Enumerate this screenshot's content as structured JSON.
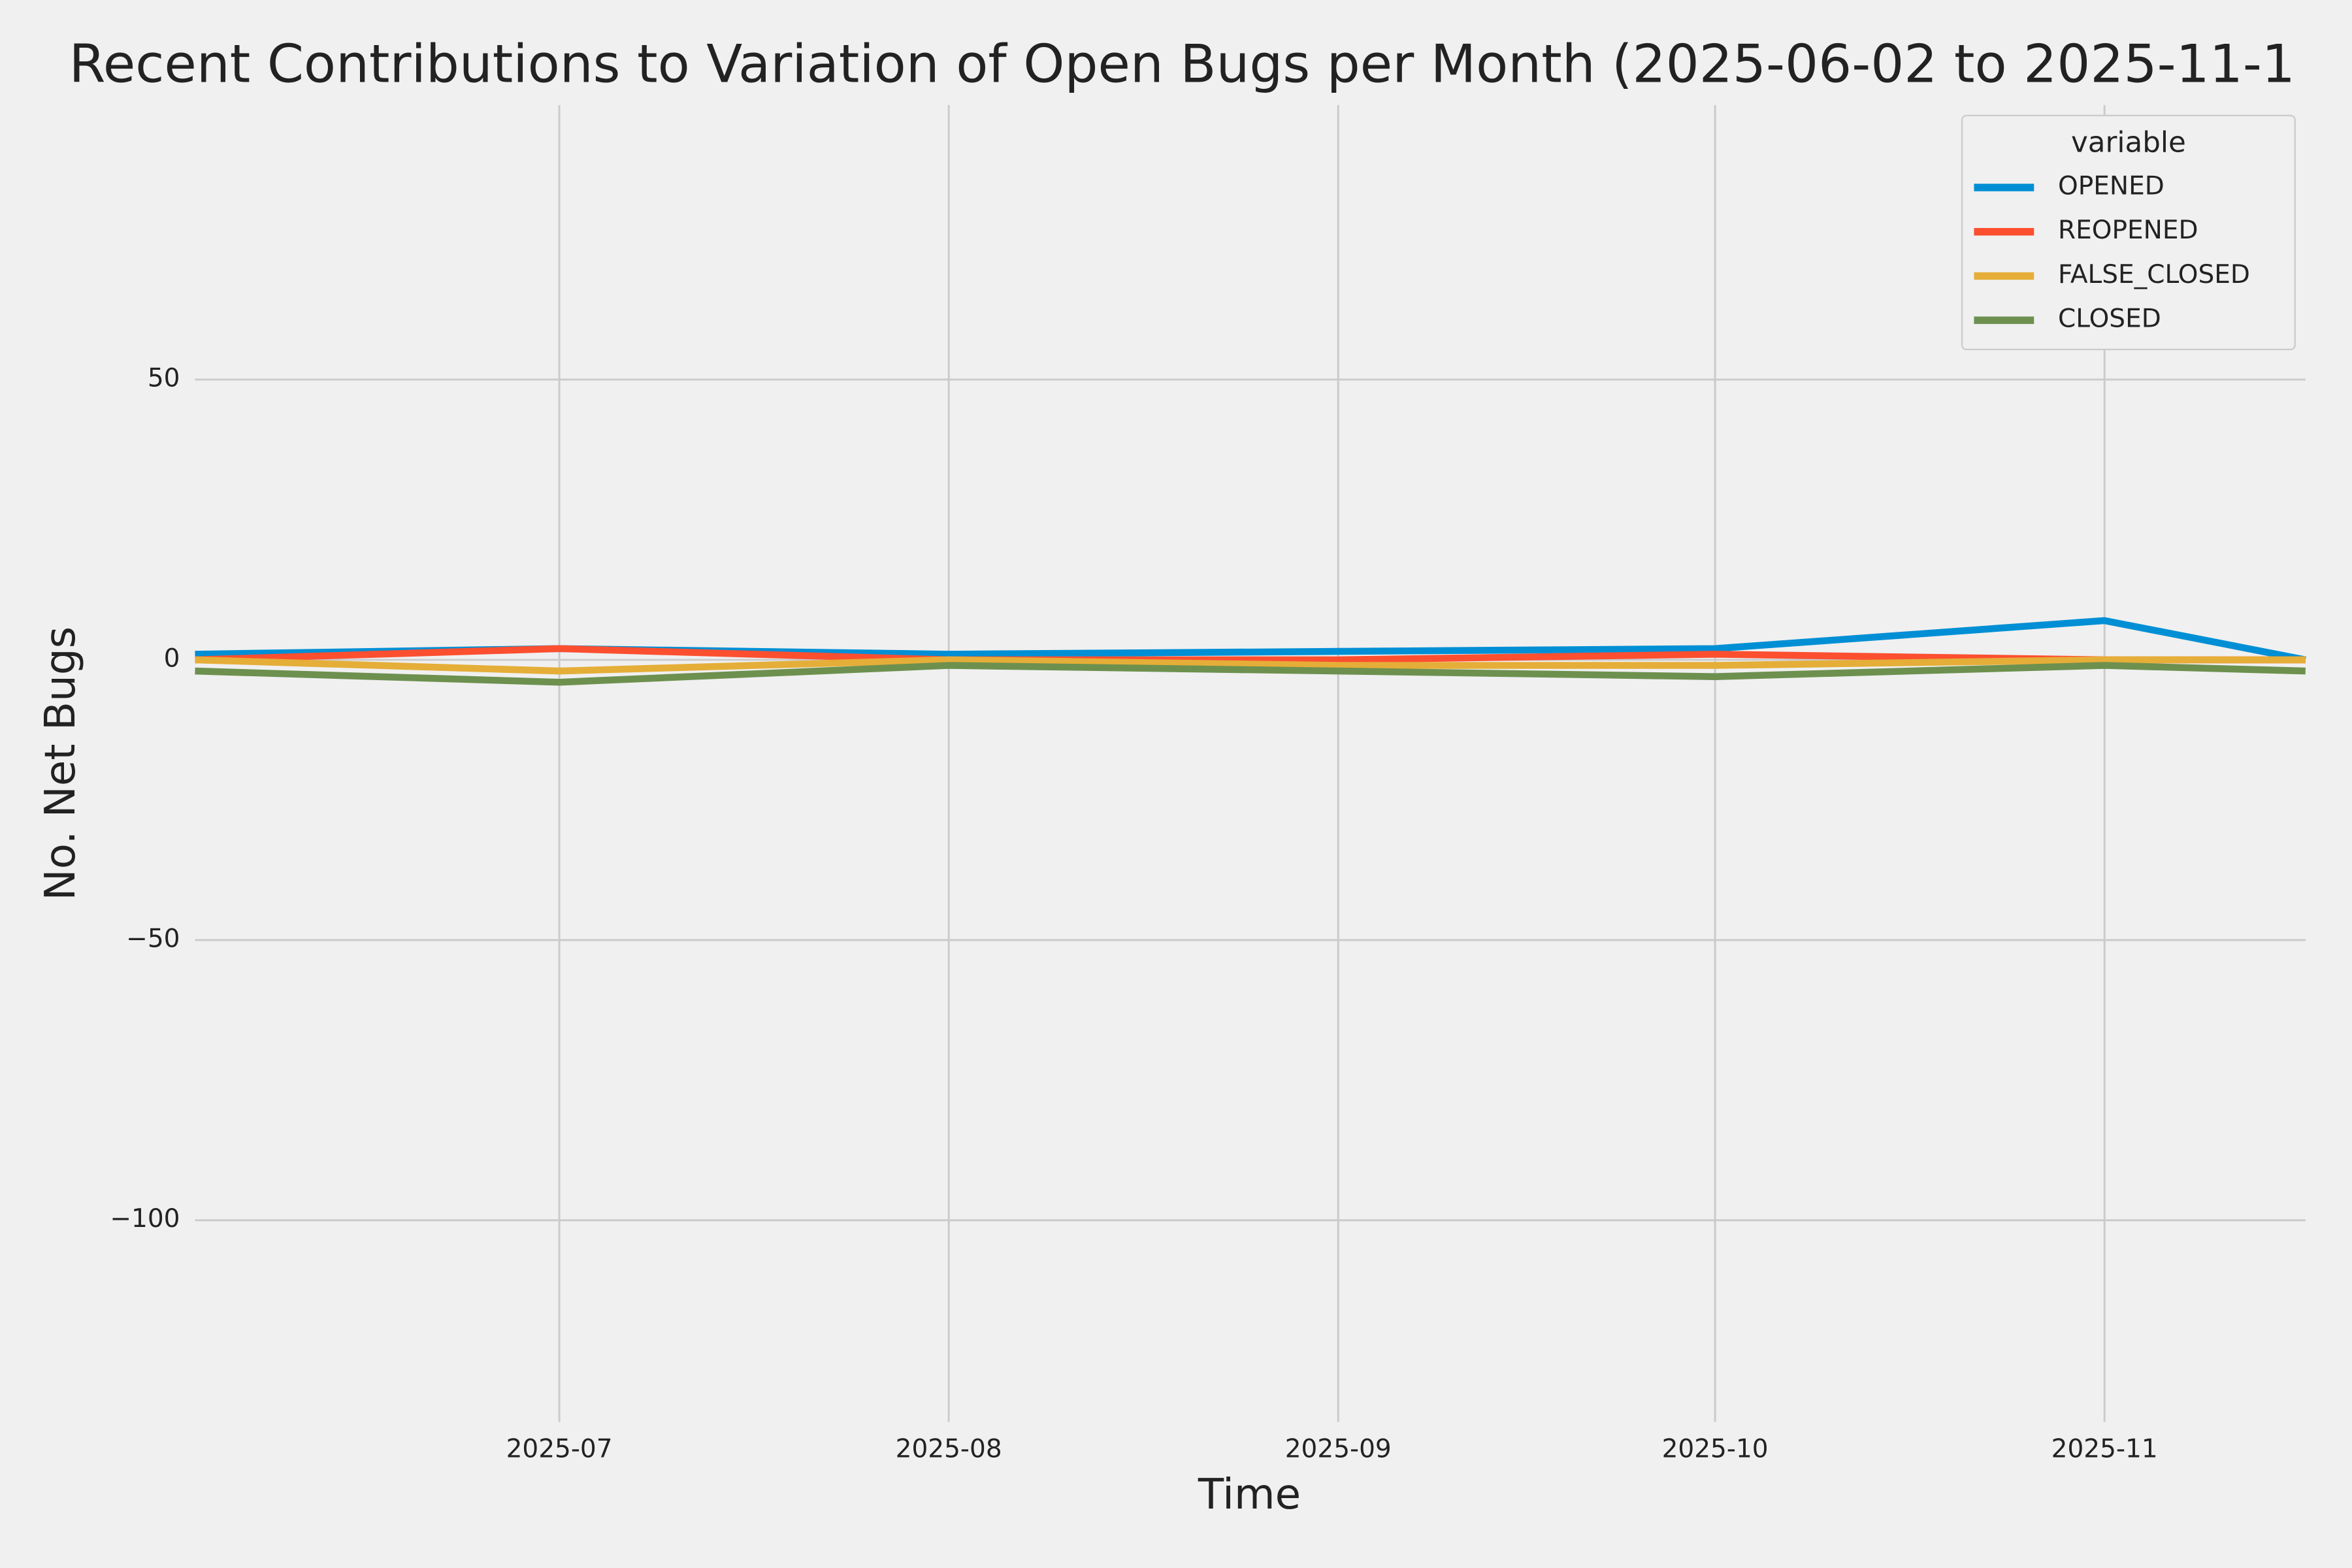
{
  "chart_data": {
    "type": "line",
    "title": "Recent Contributions to Variation of Open Bugs per Month (2025-06-02 to 2025-11-1",
    "xlabel": "Time",
    "ylabel": "No. Net Bugs",
    "x": [
      "2025-06-02",
      "2025-07",
      "2025-08",
      "2025-09",
      "2025-10",
      "2025-11",
      "2025-11-17"
    ],
    "xlim": [
      "2025-06-02",
      "2025-11-17"
    ],
    "xticks": [
      "2025-07",
      "2025-08",
      "2025-09",
      "2025-10",
      "2025-11"
    ],
    "ylim": [
      -136,
      99
    ],
    "yticks": [
      {
        "value": -100,
        "label": "−100"
      },
      {
        "value": -50,
        "label": "−50"
      },
      0,
      50
    ],
    "grid": true,
    "legend_title": "variable",
    "legend": "upper right",
    "series": [
      {
        "name": "OPENED",
        "color": "#008fd5",
        "values": [
          1,
          2,
          1,
          1.5,
          2,
          7,
          0
        ]
      },
      {
        "name": "REOPENED",
        "color": "#fc4f30",
        "values": [
          0,
          2,
          0,
          0,
          1,
          0,
          0
        ]
      },
      {
        "name": "FALSE_CLOSED",
        "color": "#e5ae38",
        "values": [
          0,
          -2,
          0,
          -1,
          -1,
          0,
          0
        ]
      },
      {
        "name": "CLOSED",
        "color": "#6d904f",
        "values": [
          -2,
          -4,
          -1,
          -2,
          -3,
          -1,
          -2
        ]
      }
    ]
  }
}
